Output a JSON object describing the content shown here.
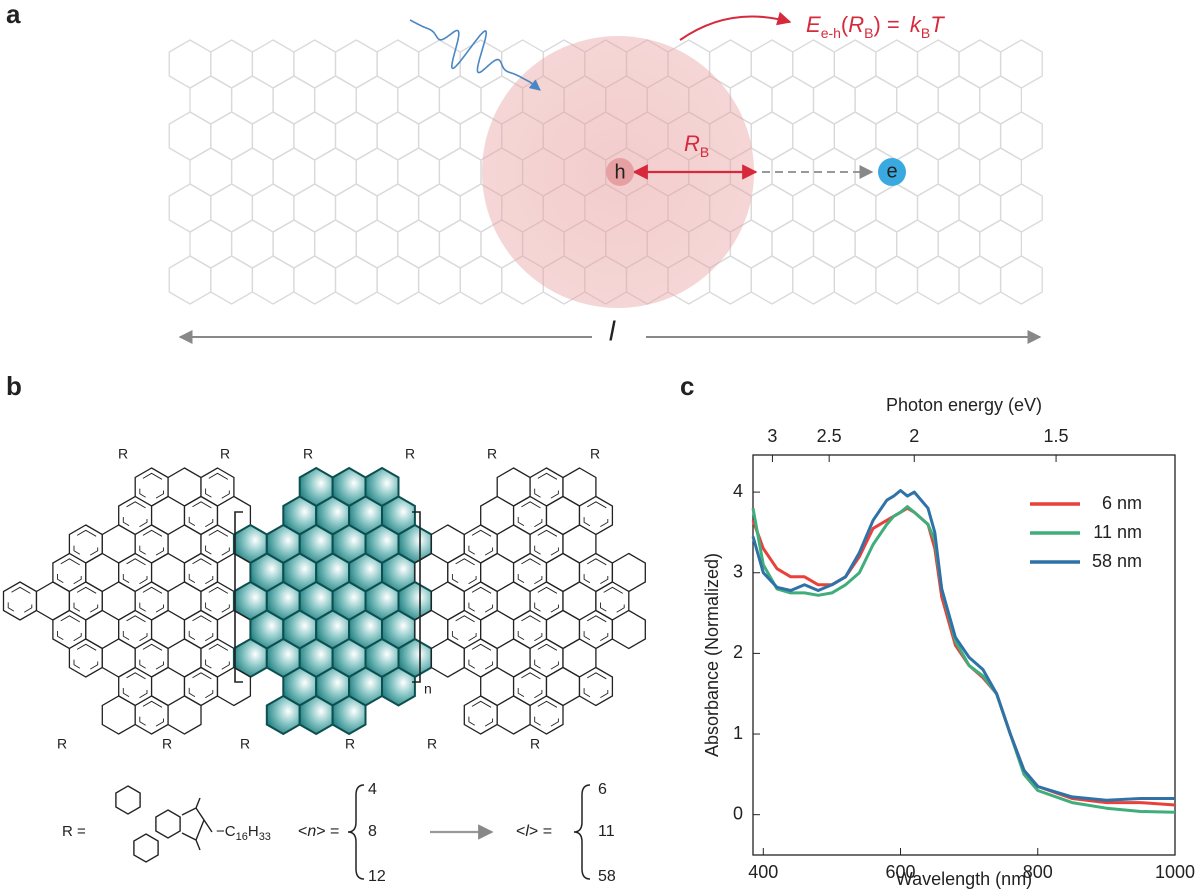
{
  "panel_labels": [
    "a",
    "b",
    "c"
  ],
  "panel_a": {
    "hole": "h",
    "electron": "e",
    "radius": [
      "R",
      "B"
    ],
    "formula": [
      "E",
      "e-h",
      "(",
      "R",
      "B",
      ") = ",
      "k",
      "B",
      "T"
    ],
    "length": "l"
  },
  "panel_b": {
    "substituent": "R",
    "repeat": "n",
    "definition": "R =",
    "chain": [
      "−C",
      "16",
      "H",
      "33"
    ],
    "n_label": [
      "<",
      "n",
      "> ="
    ],
    "n_values": [
      "4",
      "8",
      "12"
    ],
    "l_label": [
      "<",
      "l",
      "> ="
    ],
    "l_values": [
      "6",
      "11",
      "58"
    ]
  },
  "chart_data": {
    "type": "line",
    "x_label": "Wavelength (nm)",
    "y_label": "Absorbance (Normalized)",
    "x2_label": "Photon energy (eV)",
    "x2ticks": [
      3,
      2.5,
      2,
      1.5
    ],
    "xlim": [
      385,
      1000
    ],
    "xticks": [
      400,
      600,
      800,
      1000
    ],
    "ylim": [
      -0.5,
      4.46
    ],
    "yticks": [
      0,
      1,
      2,
      3,
      4
    ],
    "x": [
      385,
      400,
      420,
      440,
      460,
      480,
      500,
      520,
      540,
      560,
      580,
      590,
      600,
      610,
      620,
      640,
      650,
      660,
      680,
      700,
      720,
      740,
      760,
      780,
      800,
      850,
      900,
      950,
      1000
    ],
    "series": [
      {
        "name": "6 nm",
        "color": "#e8413c",
        "values": [
          3.65,
          3.3,
          3.05,
          2.95,
          2.95,
          2.85,
          2.85,
          2.95,
          3.2,
          3.55,
          3.65,
          3.7,
          3.75,
          3.8,
          3.75,
          3.6,
          3.3,
          2.7,
          2.1,
          1.85,
          1.7,
          1.5,
          1.0,
          0.55,
          0.35,
          0.2,
          0.15,
          0.15,
          0.12
        ]
      },
      {
        "name": "11 nm",
        "color": "#3fae7a",
        "values": [
          3.8,
          3.1,
          2.8,
          2.75,
          2.75,
          2.72,
          2.75,
          2.85,
          3.0,
          3.35,
          3.6,
          3.7,
          3.75,
          3.82,
          3.75,
          3.6,
          3.4,
          2.8,
          2.15,
          1.85,
          1.72,
          1.5,
          1.0,
          0.5,
          0.3,
          0.15,
          0.08,
          0.04,
          0.03
        ]
      },
      {
        "name": "58 nm",
        "color": "#2f72a8",
        "values": [
          3.45,
          3.0,
          2.82,
          2.78,
          2.85,
          2.78,
          2.85,
          2.95,
          3.25,
          3.65,
          3.9,
          3.95,
          4.02,
          3.95,
          4.0,
          3.8,
          3.5,
          2.8,
          2.2,
          1.95,
          1.8,
          1.5,
          1.0,
          0.55,
          0.35,
          0.22,
          0.18,
          0.2,
          0.2
        ]
      }
    ]
  }
}
